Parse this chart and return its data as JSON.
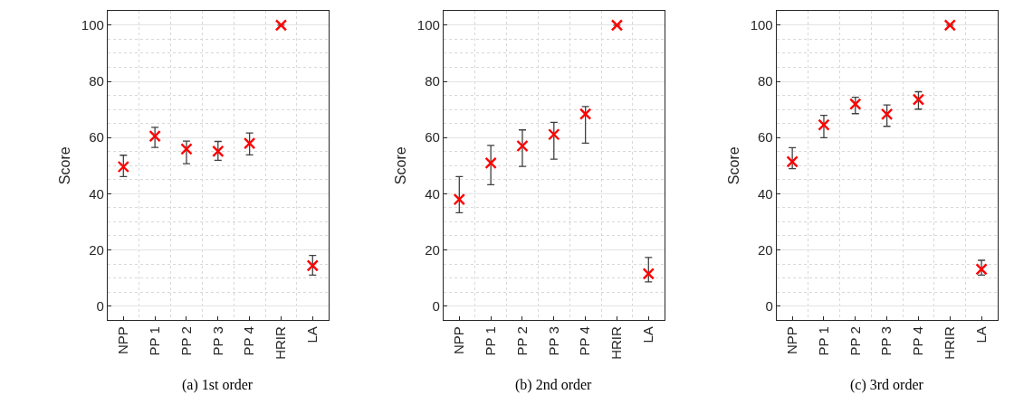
{
  "chart_data": [
    {
      "type": "scatter",
      "ylabel": "Score",
      "annotations": [
        "(a) 1st order"
      ],
      "categories": [
        "NPP",
        "PP 1",
        "PP 2",
        "PP 3",
        "PP 4",
        "HRIR",
        "LA"
      ],
      "ylim": [
        -5,
        105
      ],
      "yticks": [
        0,
        20,
        40,
        60,
        80,
        100
      ],
      "grid": true,
      "marker": "cross",
      "series": [
        {
          "color": "#ff0000",
          "values": [
            49.6,
            60.5,
            55.9,
            55.1,
            57.9,
            100,
            14.4
          ],
          "errors": [
            [
              46.1,
              53.7
            ],
            [
              56.5,
              63.6
            ],
            [
              50.7,
              58.7
            ],
            [
              51.9,
              58.6
            ],
            [
              53.8,
              61.6
            ],
            null,
            [
              11.0,
              18.0
            ]
          ]
        }
      ]
    },
    {
      "type": "scatter",
      "ylabel": "Score",
      "annotations": [
        "(b) 2nd order"
      ],
      "categories": [
        "NPP",
        "PP 1",
        "PP 2",
        "PP 3",
        "PP 4",
        "HRIR",
        "LA"
      ],
      "ylim": [
        -5,
        105
      ],
      "yticks": [
        0,
        20,
        40,
        60,
        80,
        100
      ],
      "grid": true,
      "marker": "cross",
      "series": [
        {
          "color": "#ff0000",
          "values": [
            38.0,
            50.9,
            57.0,
            61.1,
            68.4,
            100,
            11.5
          ],
          "errors": [
            [
              33.2,
              46.1
            ],
            [
              43.2,
              57.2
            ],
            [
              49.7,
              62.7
            ],
            [
              52.3,
              65.4
            ],
            [
              58.0,
              71.0
            ],
            null,
            [
              8.6,
              17.3
            ]
          ]
        }
      ]
    },
    {
      "type": "scatter",
      "ylabel": "Score",
      "annotations": [
        "(c) 3rd order"
      ],
      "categories": [
        "NPP",
        "PP 1",
        "PP 2",
        "PP 3",
        "PP 4",
        "HRIR",
        "LA"
      ],
      "ylim": [
        -5,
        105
      ],
      "yticks": [
        0,
        20,
        40,
        60,
        80,
        100
      ],
      "grid": true,
      "marker": "cross",
      "series": [
        {
          "color": "#ff0000",
          "values": [
            51.4,
            64.5,
            71.9,
            68.3,
            73.5,
            100,
            13.1
          ],
          "errors": [
            [
              48.9,
              56.4
            ],
            [
              59.9,
              67.9
            ],
            [
              68.5,
              74.3
            ],
            [
              64.0,
              71.6
            ],
            [
              70.1,
              76.3
            ],
            null,
            [
              11.0,
              16.3
            ]
          ]
        }
      ]
    }
  ]
}
